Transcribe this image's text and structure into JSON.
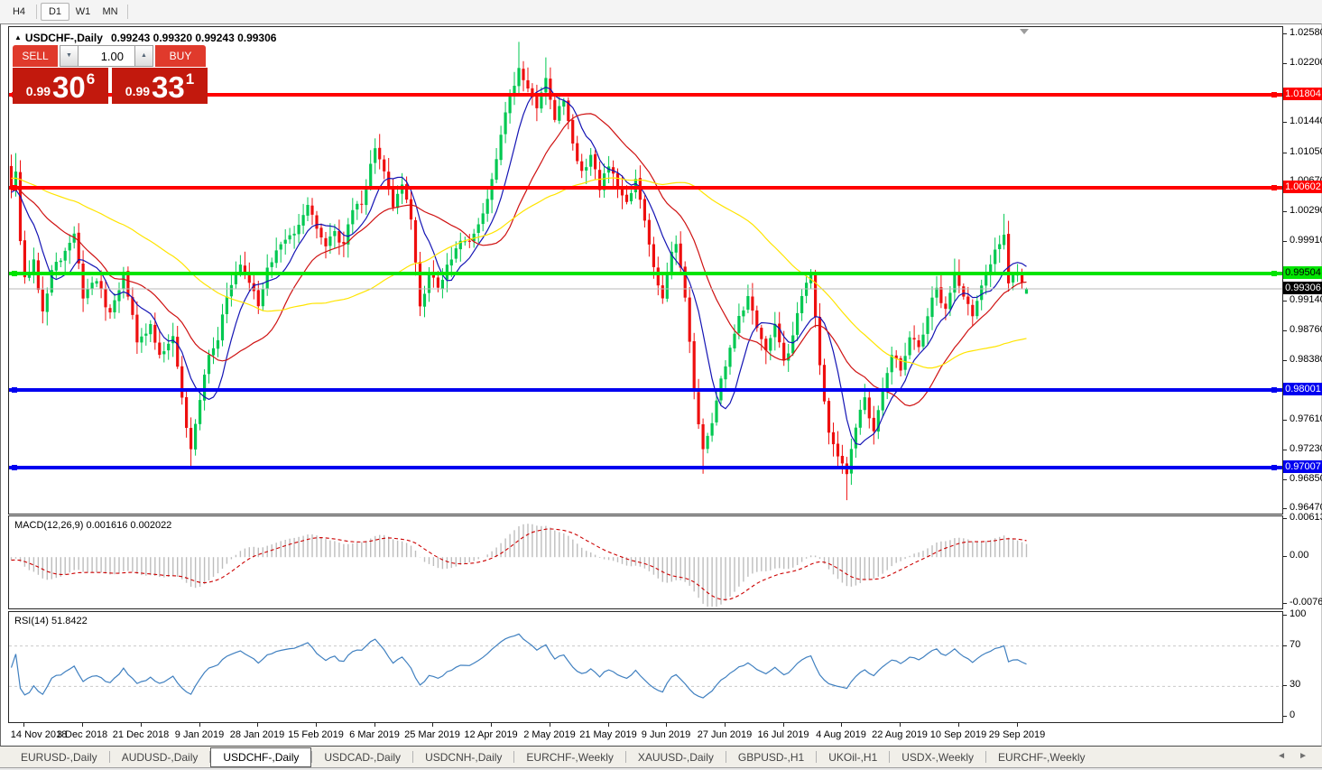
{
  "toolbar": {
    "buttons": [
      "H4",
      "D1",
      "W1",
      "MN"
    ],
    "active": "D1"
  },
  "chart_title": {
    "symbol": "USDCHF-,Daily",
    "ohlc": "0.99243 0.99320 0.99243 0.99306"
  },
  "trade_panel": {
    "sell_label": "SELL",
    "buy_label": "BUY",
    "quantity": "1.00",
    "sell_price": {
      "base": "0.99",
      "big": "30",
      "sup": "6"
    },
    "buy_price": {
      "base": "0.99",
      "big": "33",
      "sup": "1"
    }
  },
  "tabs": {
    "items": [
      "EURUSD-,Daily",
      "AUDUSD-,Daily",
      "USDCHF-,Daily",
      "USDCAD-,Daily",
      "USDCNH-,Daily",
      "EURCHF-,Weekly",
      "XAUUSD-,Daily",
      "GBPUSD-,H1",
      "UKOil-,H1",
      "USDX-,Weekly",
      "EURCHF-,Weekly"
    ],
    "active_index": 2
  },
  "chart_data": {
    "type": "candlestick",
    "symbol": "USDCHF-",
    "period": "Daily",
    "n_candles": 227,
    "ohlc_display": {
      "open": "0.99243",
      "high": "0.99320",
      "low": "0.99243",
      "close": "0.99306"
    },
    "price_scale": {
      "y_top_price": 1.0267,
      "y_bottom_price": 0.9644,
      "ticks": [
        1.0258,
        1.022,
        1.0144,
        1.0105,
        1.0067,
        1.0029,
        0.9991,
        0.9914,
        0.9876,
        0.9838,
        0.9761,
        0.9723,
        0.9685,
        0.9647
      ]
    },
    "x_axis": {
      "labels": [
        "14 Nov 2018",
        "3 Dec 2018",
        "21 Dec 2018",
        "9 Jan 2019",
        "28 Jan 2019",
        "15 Feb 2019",
        "6 Mar 2019",
        "25 Mar 2019",
        "12 Apr 2019",
        "2 May 2019",
        "21 May 2019",
        "9 Jun 2019",
        "27 Jun 2019",
        "16 Jul 2019",
        "4 Aug 2019",
        "22 Aug 2019",
        "10 Sep 2019",
        "29 Sep 2019"
      ],
      "first_label_candle_index": 3,
      "label_every_n_candles": 13
    },
    "candle_colors": {
      "up": "#00c851",
      "down": "#ee0f0f"
    },
    "close_path_anchors": [
      [
        0,
        1.006
      ],
      [
        1,
        1.0082
      ],
      [
        2,
        0.9992
      ],
      [
        3,
        0.9945
      ],
      [
        5,
        0.9968
      ],
      [
        7,
        0.9902
      ],
      [
        9,
        0.9955
      ],
      [
        12,
        0.998
      ],
      [
        14,
        1.0002
      ],
      [
        16,
        0.9918
      ],
      [
        19,
        0.994
      ],
      [
        22,
        0.99
      ],
      [
        25,
        0.9952
      ],
      [
        28,
        0.9862
      ],
      [
        31,
        0.9885
      ],
      [
        33,
        0.9845
      ],
      [
        36,
        0.987
      ],
      [
        38,
        0.979
      ],
      [
        40,
        0.9725
      ],
      [
        42,
        0.9788
      ],
      [
        44,
        0.9845
      ],
      [
        46,
        0.9865
      ],
      [
        48,
        0.992
      ],
      [
        51,
        0.9962
      ],
      [
        53,
        0.9938
      ],
      [
        55,
        0.9908
      ],
      [
        57,
        0.9958
      ],
      [
        60,
        0.9988
      ],
      [
        63,
        1.0002
      ],
      [
        66,
        1.0038
      ],
      [
        68,
        1.0008
      ],
      [
        70,
        0.9985
      ],
      [
        72,
        1.0005
      ],
      [
        74,
        0.9988
      ],
      [
        76,
        1.0032
      ],
      [
        78,
        1.004
      ],
      [
        80,
        1.0092
      ],
      [
        81,
        1.0112
      ],
      [
        83,
        1.0082
      ],
      [
        85,
        1.0035
      ],
      [
        87,
        1.0065
      ],
      [
        89,
        1.002
      ],
      [
        91,
        0.9908
      ],
      [
        93,
        0.9952
      ],
      [
        95,
        0.9932
      ],
      [
        97,
        0.9962
      ],
      [
        99,
        0.9982
      ],
      [
        101,
        0.9992
      ],
      [
        103,
        1.0002
      ],
      [
        105,
        1.0028
      ],
      [
        107,
        1.0072
      ],
      [
        109,
        1.0128
      ],
      [
        111,
        1.0178
      ],
      [
        113,
        1.0215
      ],
      [
        115,
        1.0188
      ],
      [
        117,
        1.0162
      ],
      [
        119,
        1.0202
      ],
      [
        121,
        1.0148
      ],
      [
        123,
        1.0172
      ],
      [
        125,
        1.0118
      ],
      [
        127,
        1.0082
      ],
      [
        129,
        1.0102
      ],
      [
        131,
        1.0058
      ],
      [
        133,
        1.0088
      ],
      [
        135,
        1.0062
      ],
      [
        137,
        1.0042
      ],
      [
        139,
        1.0072
      ],
      [
        141,
        1.0018
      ],
      [
        143,
        0.9958
      ],
      [
        145,
        0.9918
      ],
      [
        147,
        0.9978
      ],
      [
        148,
        0.9988
      ],
      [
        150,
        0.992
      ],
      [
        152,
        0.9798
      ],
      [
        154,
        0.9725
      ],
      [
        156,
        0.9758
      ],
      [
        158,
        0.9815
      ],
      [
        160,
        0.9855
      ],
      [
        162,
        0.9895
      ],
      [
        164,
        0.9922
      ],
      [
        166,
        0.988
      ],
      [
        168,
        0.9852
      ],
      [
        170,
        0.9885
      ],
      [
        172,
        0.9838
      ],
      [
        174,
        0.987
      ],
      [
        176,
        0.9922
      ],
      [
        178,
        0.9948
      ],
      [
        180,
        0.9832
      ],
      [
        182,
        0.9745
      ],
      [
        184,
        0.9716
      ],
      [
        186,
        0.9692
      ],
      [
        188,
        0.9752
      ],
      [
        190,
        0.9792
      ],
      [
        192,
        0.9748
      ],
      [
        194,
        0.98
      ],
      [
        196,
        0.9845
      ],
      [
        198,
        0.9825
      ],
      [
        200,
        0.9868
      ],
      [
        202,
        0.9855
      ],
      [
        204,
        0.9895
      ],
      [
        206,
        0.9932
      ],
      [
        208,
        0.9905
      ],
      [
        210,
        0.9952
      ],
      [
        212,
        0.992
      ],
      [
        214,
        0.9896
      ],
      [
        216,
        0.9935
      ],
      [
        218,
        0.9962
      ],
      [
        220,
        0.9988
      ],
      [
        221,
        1.0
      ],
      [
        222,
        0.9938
      ],
      [
        224,
        0.995
      ],
      [
        226,
        0.99306
      ]
    ],
    "wick_spikes": [
      {
        "i": 1,
        "side": "h",
        "price": 1.0105
      },
      {
        "i": 40,
        "side": "l",
        "price": 0.97
      },
      {
        "i": 81,
        "side": "h",
        "price": 1.0124
      },
      {
        "i": 113,
        "side": "h",
        "price": 1.0248
      },
      {
        "i": 119,
        "side": "h",
        "price": 1.0228
      },
      {
        "i": 154,
        "side": "l",
        "price": 0.9693
      },
      {
        "i": 178,
        "side": "h",
        "price": 0.9956
      },
      {
        "i": 186,
        "side": "l",
        "price": 0.9659
      },
      {
        "i": 221,
        "side": "h",
        "price": 1.0027
      }
    ],
    "moving_averages": [
      {
        "period": 8,
        "color": "#1414b4"
      },
      {
        "period": 21,
        "color": "#cf1212"
      },
      {
        "period": 55,
        "color": "#ffe400"
      }
    ],
    "hlines": [
      {
        "price": 1.01804,
        "label": "1.01804",
        "color": "#ff0000",
        "label_text_color": "#ffffff"
      },
      {
        "price": 1.00602,
        "label": "1.00602",
        "color": "#ff0000",
        "label_text_color": "#ffffff"
      },
      {
        "price": 0.99504,
        "label": "0.99504",
        "color": "#00e400",
        "label_text_color": "#000000"
      },
      {
        "price": 0.98001,
        "label": "0.98001",
        "color": "#0000f0",
        "label_text_color": "#ffffff"
      },
      {
        "price": 0.97007,
        "label": "0.97007",
        "color": "#0000f0",
        "label_text_color": "#ffffff"
      }
    ],
    "current_price": {
      "value": 0.99306,
      "label": "0.99306"
    },
    "macd": {
      "label": "MACD(12,26,9)",
      "values_text": "0.001616 0.002022",
      "axis": [
        {
          "v": 0.00613,
          "t": "0.00613"
        },
        {
          "v": 0.0,
          "t": "0.00"
        },
        {
          "v": -0.00761,
          "t": "-0.00761"
        }
      ],
      "range": [
        -0.008,
        0.0066
      ],
      "hist_color": "#bdbdbd",
      "signal_color": "#cc0000"
    },
    "rsi": {
      "label": "RSI(14)",
      "value_text": "51.8422",
      "axis": [
        100,
        70,
        30,
        0
      ],
      "levels": [
        70,
        30
      ],
      "line_color": "#4080c0",
      "range": [
        0,
        100
      ]
    }
  }
}
